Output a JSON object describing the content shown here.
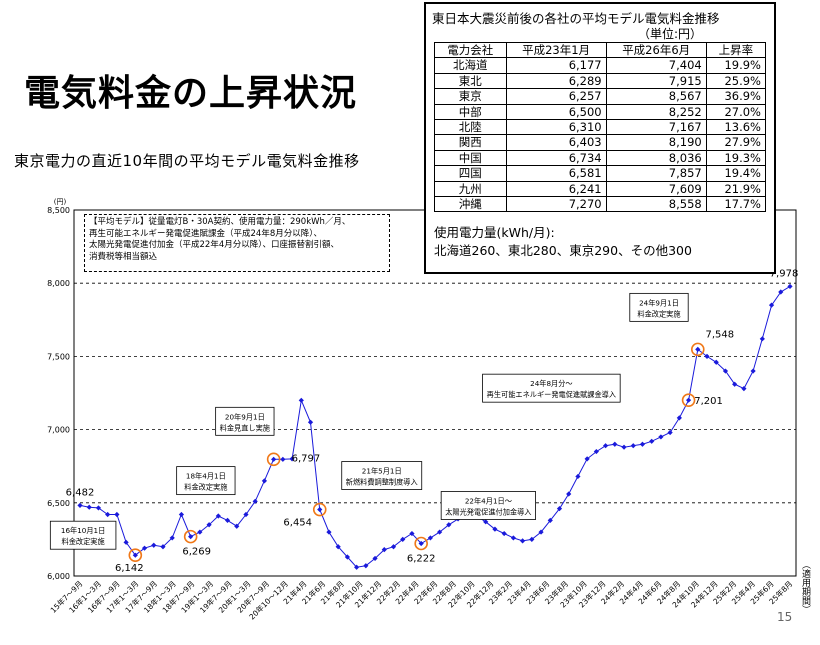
{
  "slide": {
    "title": "電気料金の上昇状況",
    "subtitle": "東京電力の直近10年間の平均モデル電気料金推移",
    "page_number": "15",
    "right_note": "（適用期間）"
  },
  "table": {
    "title": "東日本大震災前後の各社の平均モデル電気料金推移",
    "unit": "（単位:円）",
    "headers": [
      "電力会社",
      "平成23年1月",
      "平成26年6月",
      "上昇率"
    ],
    "rows": [
      [
        "北海道",
        "6,177",
        "7,404",
        "19.9%"
      ],
      [
        "東北",
        "6,289",
        "7,915",
        "25.9%"
      ],
      [
        "東京",
        "6,257",
        "8,567",
        "36.9%"
      ],
      [
        "中部",
        "6,500",
        "8,252",
        "27.0%"
      ],
      [
        "北陸",
        "6,310",
        "7,167",
        "13.6%"
      ],
      [
        "関西",
        "6,403",
        "8,190",
        "27.9%"
      ],
      [
        "中国",
        "6,734",
        "8,036",
        "19.3%"
      ],
      [
        "四国",
        "6,581",
        "7,857",
        "19.4%"
      ],
      [
        "九州",
        "6,241",
        "7,609",
        "21.9%"
      ],
      [
        "沖縄",
        "7,270",
        "8,558",
        "17.7%"
      ]
    ],
    "usage_line1": "使用電力量(kWh/月):",
    "usage_line2": "北海道260、東北280、東京290、その他300"
  },
  "note": {
    "line1": "【平均モデル】従量電灯B・30A契約、使用電力量：290kWh／月、",
    "line2": "再生可能エネルギー発電促進賦課金（平成24年8月分以降）、",
    "line3": "太陽光発電促進付加金（平成22年4月分以降）、口座振替割引額、",
    "line4": "消費税等相当額込"
  },
  "chart_data": {
    "type": "line",
    "ylabel": "(円)",
    "ylim": [
      6000,
      8500
    ],
    "yticks": [
      "6,000",
      "6,500",
      "7,000",
      "7,500",
      "8,000",
      "8,500"
    ],
    "grid": true,
    "color": "#1a1adb",
    "x_tick_labels": [
      "15年7～9月",
      "16年1～3月",
      "16年7～9月",
      "17年1～3月",
      "17年7～9月",
      "18年1～3月",
      "18年7～9月",
      "19年1～3月",
      "19年7～9月",
      "20年1～3月",
      "20年7～9月",
      "20年10～12月",
      "21年4月",
      "21年6月",
      "21年8月",
      "21年10月",
      "21年12月",
      "22年2月",
      "22年4月",
      "22年6月",
      "22年8月",
      "22年10月",
      "22年12月",
      "23年2月",
      "23年4月",
      "23年6月",
      "23年8月",
      "23年10月",
      "23年12月",
      "24年2月",
      "24年4月",
      "24年6月",
      "24年8月",
      "24年10月",
      "24年12月",
      "25年2月",
      "25年4月",
      "25年6月",
      "25年8月"
    ],
    "values": [
      6482,
      6470,
      6465,
      6420,
      6420,
      6230,
      6142,
      6190,
      6210,
      6200,
      6260,
      6420,
      6269,
      6300,
      6350,
      6410,
      6380,
      6340,
      6420,
      6510,
      6650,
      6797,
      6797,
      6800,
      7200,
      7050,
      6454,
      6300,
      6200,
      6130,
      6060,
      6070,
      6120,
      6180,
      6200,
      6250,
      6290,
      6222,
      6260,
      6300,
      6350,
      6390,
      6430,
      6410,
      6370,
      6320,
      6290,
      6260,
      6240,
      6250,
      6300,
      6380,
      6460,
      6560,
      6680,
      6800,
      6850,
      6890,
      6900,
      6880,
      6890,
      6900,
      6920,
      6950,
      6980,
      7080,
      7201,
      7548,
      7500,
      7460,
      7400,
      7310,
      7280,
      7400,
      7620,
      7850,
      7940,
      7978
    ],
    "annotations": [
      {
        "value": "6,482",
        "text": ""
      },
      {
        "value": "6,142",
        "text": "16年10月1日\n料金改定実施"
      },
      {
        "value": "6,269",
        "text": "18年4月1日\n料金改定実施"
      },
      {
        "value": "6,797",
        "text": "20年9月1日\n料金見直し実施"
      },
      {
        "value": "6,454",
        "text": "21年5月1日\n新燃料費調整制度導入"
      },
      {
        "value": "6,222",
        "text": "22年4月1日～\n太陽光発電促進付加金導入"
      },
      {
        "value": "7,201",
        "text": "24年8月分～\n再生可能エネルギー発電促進賦課金導入"
      },
      {
        "value": "7,548",
        "text": "24年9月1日\n料金改定実施"
      },
      {
        "value": "7,978",
        "text": ""
      }
    ]
  }
}
